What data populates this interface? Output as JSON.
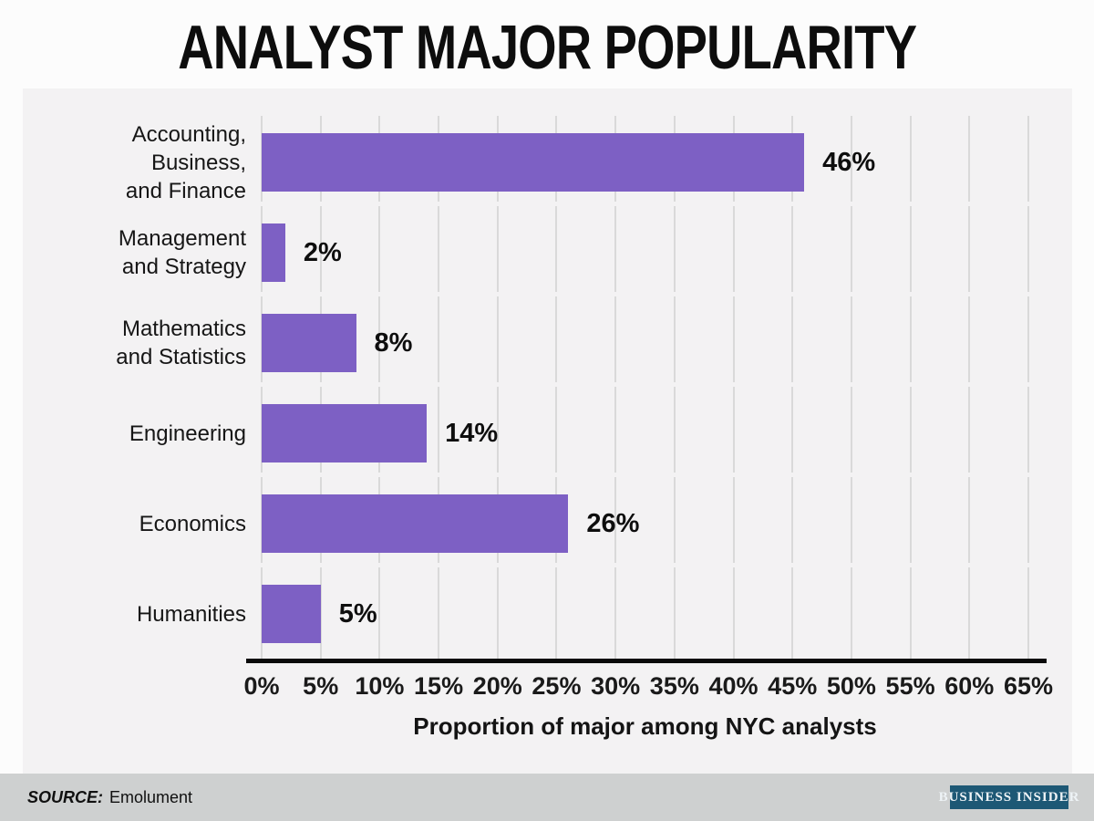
{
  "title": "ANALYST MAJOR POPULARITY",
  "chart_data": {
    "type": "bar",
    "orientation": "horizontal",
    "title": "ANALYST MAJOR POPULARITY",
    "categories": [
      "Accounting, Business,\nand Finance",
      "Management\nand Strategy",
      "Mathematics\nand Statistics",
      "Engineering",
      "Economics",
      "Humanities"
    ],
    "values": [
      46,
      2,
      8,
      14,
      26,
      5
    ],
    "value_labels": [
      "46%",
      "2%",
      "8%",
      "14%",
      "26%",
      "5%"
    ],
    "xlabel": "Proportion of major among NYC analysts",
    "xticks": [
      "0%",
      "5%",
      "10%",
      "15%",
      "20%",
      "25%",
      "30%",
      "35%",
      "40%",
      "45%",
      "50%",
      "55%",
      "60%",
      "65%"
    ],
    "xlim": [
      0,
      65
    ],
    "grid": true,
    "legend": "none",
    "bar_color": "#7d60c4",
    "gridline_color": "#d9d9d9",
    "plot_background": "#f3f2f3"
  },
  "source": {
    "label": "SOURCE:",
    "name": "Emolument"
  },
  "branding": {
    "name": "Business Insider",
    "display_text": "BUSINESS INSIDER",
    "bg_color": "#1d5875"
  }
}
